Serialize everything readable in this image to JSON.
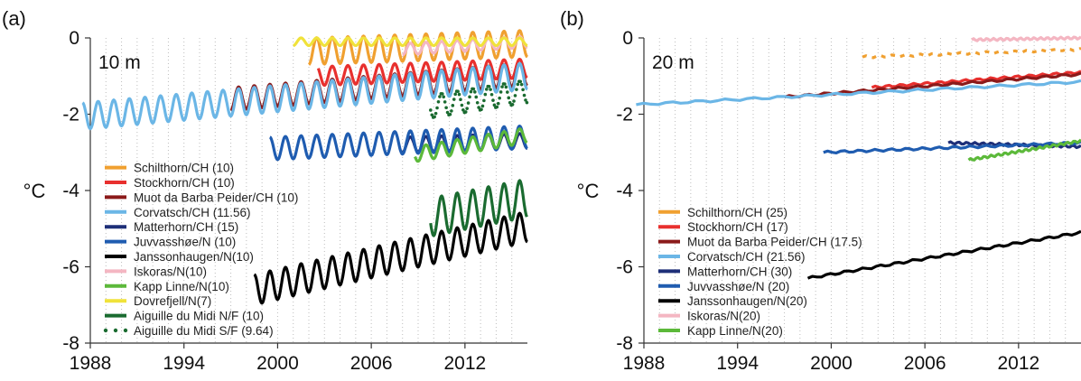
{
  "chart_data": [
    {
      "type": "line",
      "panel_label": "(a)",
      "depth_label": "10 m",
      "ylabel": "°C",
      "xlim": [
        1988,
        2016
      ],
      "ylim": [
        -8,
        0
      ],
      "xticks": [
        1988,
        1994,
        2000,
        2006,
        2012
      ],
      "yticks": [
        0,
        -2,
        -4,
        -6,
        -8
      ],
      "grid": "dotted vertical, yearly",
      "legend_position": "bottom-left",
      "series": [
        {
          "name": "Schilthorn/CH (10)",
          "color": "#f0a030",
          "style": "seasonal",
          "x": [
            2002.0,
            2016.0
          ],
          "base": [
            -0.35,
            -0.15
          ],
          "amp": 0.35
        },
        {
          "name": "Stockhorn/CH (10)",
          "color": "#e8302e",
          "style": "seasonal",
          "x": [
            2002.6,
            2016.0
          ],
          "base": [
            -1.0,
            -0.8
          ],
          "amp": 0.25
        },
        {
          "name": "Muot da Barba Peider/CH (10)",
          "color": "#8b1a1a",
          "style": "seasonal",
          "x": [
            1997.0,
            2016.0
          ],
          "base": [
            -1.6,
            -0.95
          ],
          "amp": 0.3
        },
        {
          "name": "Corvatsch/CH (11.56)",
          "color": "#6bb6e6",
          "style": "seasonal",
          "x": [
            1987.5,
            2016.0
          ],
          "base": [
            -2.05,
            -1.0
          ],
          "amp": 0.35
        },
        {
          "name": "Matterhorn/CH (15)",
          "color": "#1e2f78",
          "style": "seasonal",
          "x": [
            2008.0,
            2016.0
          ],
          "base": [
            -2.8,
            -2.7
          ],
          "amp": 0.2
        },
        {
          "name": "Juvvasshøe/N (10)",
          "color": "#1f5cb0",
          "style": "seasonal",
          "x": [
            1999.5,
            2016.0
          ],
          "base": [
            -2.9,
            -2.6
          ],
          "amp": 0.3
        },
        {
          "name": "Janssonhaugen/N(10)",
          "color": "#000000",
          "style": "seasonal",
          "x": [
            1998.5,
            2016.0
          ],
          "base": [
            -6.6,
            -4.95
          ],
          "amp": 0.4
        },
        {
          "name": "Iskoras/N(10)",
          "color": "#f4b6c2",
          "style": "seasonal",
          "x": [
            2008.0,
            2016.0
          ],
          "base": [
            -0.3,
            -0.1
          ],
          "amp": 0.15
        },
        {
          "name": "Kapp Linne/N(10)",
          "color": "#5cb93a",
          "style": "seasonal",
          "x": [
            2008.8,
            2016.0
          ],
          "base": [
            -3.05,
            -2.55
          ],
          "amp": 0.2
        },
        {
          "name": "Dovrefjell/N(7)",
          "color": "#f0e23a",
          "style": "seasonal",
          "x": [
            2001.0,
            2016.0
          ],
          "base": [
            -0.1,
            -0.1
          ],
          "amp": 0.1
        },
        {
          "name": "Aiguille du Midi N/F (10)",
          "color": "#1a6b30",
          "style": "seasonal",
          "x": [
            2009.8,
            2016.0
          ],
          "base": [
            -4.7,
            -4.2
          ],
          "amp": 0.5
        },
        {
          "name": "Aiguille du Midi S/F (9.64)",
          "color": "#1a6b30",
          "style": "dots",
          "x": [
            2009.8,
            2016.0
          ],
          "base": [
            -1.8,
            -1.4
          ],
          "amp": 0.3
        }
      ]
    },
    {
      "type": "line",
      "panel_label": "(b)",
      "depth_label": "20 m",
      "ylabel": "°C",
      "xlim": [
        1988,
        2016
      ],
      "ylim": [
        -8,
        0
      ],
      "xticks": [
        1988,
        1994,
        2000,
        2006,
        2012
      ],
      "yticks": [
        0,
        -2,
        -4,
        -6,
        -8
      ],
      "grid": "dotted vertical, yearly",
      "legend_position": "bottom-left",
      "series": [
        {
          "name": "Schilthorn/CH (25)",
          "color": "#f0a030",
          "style": "dashed",
          "x": [
            2002.0,
            2016.0
          ],
          "y": [
            -0.5,
            -0.3
          ]
        },
        {
          "name": "Stockhorn/CH (17)",
          "color": "#e8302e",
          "style": "trend",
          "x": [
            2002.6,
            2016.0
          ],
          "y": [
            -1.3,
            -0.9
          ]
        },
        {
          "name": "Muot da Barba Peider/CH (17.5)",
          "color": "#8b1a1a",
          "style": "trend",
          "x": [
            1997.0,
            2016.0
          ],
          "y": [
            -1.55,
            -0.95
          ]
        },
        {
          "name": "Corvatsch/CH (21.56)",
          "color": "#6bb6e6",
          "style": "trend",
          "x": [
            1987.5,
            2016.0
          ],
          "y": [
            -1.75,
            -1.15
          ]
        },
        {
          "name": "Matterhorn/CH (30)",
          "color": "#1e2f78",
          "style": "trend",
          "x": [
            2007.5,
            2016.0
          ],
          "y": [
            -2.75,
            -2.85
          ]
        },
        {
          "name": "Juvvasshøe/N (20)",
          "color": "#1f5cb0",
          "style": "trend",
          "x": [
            1999.5,
            2016.0
          ],
          "y": [
            -3.0,
            -2.75
          ]
        },
        {
          "name": "Janssonhaugen/N(20)",
          "color": "#000000",
          "style": "trend",
          "x": [
            1998.5,
            2016.0
          ],
          "y": [
            -6.3,
            -5.1
          ]
        },
        {
          "name": "Iskoras/N(20)",
          "color": "#f4b6c2",
          "style": "trend",
          "x": [
            2009.0,
            2016.0
          ],
          "y": [
            -0.05,
            0.0
          ]
        },
        {
          "name": "Kapp Linne/N(20)",
          "color": "#5cb93a",
          "style": "trend",
          "x": [
            2008.8,
            2016.0
          ],
          "y": [
            -3.2,
            -2.7
          ]
        }
      ]
    }
  ]
}
